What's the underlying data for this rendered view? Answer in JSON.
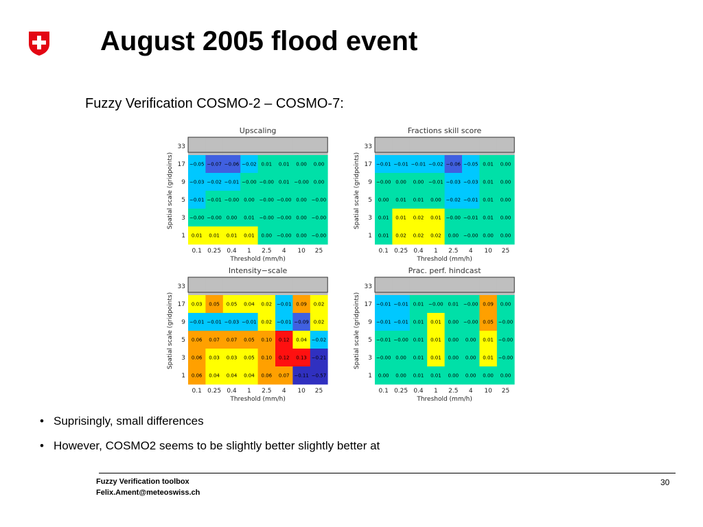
{
  "slide": {
    "title": "August 2005 flood event",
    "subtitle": "Fuzzy Verification COSMO-2 – COSMO-7:",
    "bullets": [
      "Suprisingly, small differences",
      "However, COSMO2 seems to be slightly better slightly better at"
    ],
    "footer_line1": "Fuzzy Verification toolbox",
    "footer_line2": "Felix.Ament@meteoswiss.ch",
    "page_number": "30"
  },
  "colors": {
    "swiss_red": "#E30613",
    "gray_row": "#BFBFBF",
    "cyan": "#00C8FF",
    "blue": "#4060E0",
    "dark_blue": "#3030C0",
    "green": "#00E0A8",
    "yellow": "#FFFF00",
    "orange": "#FFA000",
    "red": "#FF1010"
  },
  "chart_data": [
    {
      "type": "heatmap",
      "title": "Upscaling",
      "xlabel": "Threshold (mm/h)",
      "ylabel": "Spatial scale (gridpoints)",
      "x": [
        "0.1",
        "0.25",
        "0.4",
        "1",
        "2.5",
        "4",
        "10",
        "25"
      ],
      "y": [
        "1",
        "3",
        "5",
        "9",
        "17",
        "33"
      ],
      "values": [
        [
          "0.01",
          "0.01",
          "0.01",
          "0.01",
          "0.00",
          "−0.00",
          "0.00",
          "−0.00"
        ],
        [
          "−0.00",
          "−0.00",
          "0.00",
          "0.01",
          "−0.00",
          "−0.00",
          "0.00",
          "−0.00"
        ],
        [
          "−0.01",
          "−0.01",
          "−0.00",
          "0.00",
          "−0.00",
          "−0.00",
          "0.00",
          "−0.00"
        ],
        [
          "−0.03",
          "−0.02",
          "−0.01",
          "−0.00",
          "−0.00",
          "0.01",
          "−0.00",
          "0.00"
        ],
        [
          "−0.05",
          "−0.07",
          "−0.06",
          "−0.02",
          "0.01",
          "0.01",
          "0.00",
          "0.00"
        ],
        [
          "",
          "",
          "",
          "",
          "",
          "",
          "",
          ""
        ]
      ],
      "colors": [
        [
          "yellow",
          "yellow",
          "yellow",
          "yellow",
          "green",
          "green",
          "green",
          "green"
        ],
        [
          "green",
          "green",
          "green",
          "green",
          "green",
          "green",
          "green",
          "green"
        ],
        [
          "cyan",
          "green",
          "green",
          "green",
          "green",
          "green",
          "green",
          "green"
        ],
        [
          "cyan",
          "cyan",
          "cyan",
          "green",
          "green",
          "green",
          "green",
          "green"
        ],
        [
          "cyan",
          "blue",
          "blue",
          "cyan",
          "green",
          "green",
          "green",
          "green"
        ],
        [
          "gray",
          "gray",
          "gray",
          "gray",
          "gray",
          "gray",
          "gray",
          "gray"
        ]
      ]
    },
    {
      "type": "heatmap",
      "title": "Fractions skill score",
      "xlabel": "Threshold (mm/h)",
      "ylabel": "Spatial scale (gridpoints)",
      "x": [
        "0.1",
        "0.25",
        "0.4",
        "1",
        "2.5",
        "4",
        "10",
        "25"
      ],
      "y": [
        "1",
        "3",
        "5",
        "9",
        "17",
        "33"
      ],
      "values": [
        [
          "0.01",
          "0.02",
          "0.02",
          "0.02",
          "0.00",
          "−0.00",
          "0.00",
          "0.00"
        ],
        [
          "0.01",
          "0.01",
          "0.02",
          "0.01",
          "−0.00",
          "−0.01",
          "0.01",
          "0.00"
        ],
        [
          "0.00",
          "0.01",
          "0.01",
          "0.00",
          "−0.02",
          "−0.01",
          "0.01",
          "0.00"
        ],
        [
          "−0.00",
          "0.00",
          "0.00",
          "−0.01",
          "−0.03",
          "−0.03",
          "0.01",
          "0.00"
        ],
        [
          "−0.01",
          "−0.01",
          "−0.01",
          "−0.02",
          "−0.06",
          "−0.05",
          "0.01",
          "0.00"
        ],
        [
          "",
          "",
          "",
          "",
          "",
          "",
          "",
          ""
        ]
      ],
      "colors": [
        [
          "green",
          "yellow",
          "yellow",
          "yellow",
          "green",
          "green",
          "green",
          "green"
        ],
        [
          "green",
          "yellow",
          "yellow",
          "yellow",
          "green",
          "green",
          "green",
          "green"
        ],
        [
          "green",
          "green",
          "green",
          "green",
          "cyan",
          "cyan",
          "green",
          "green"
        ],
        [
          "green",
          "green",
          "green",
          "green",
          "cyan",
          "cyan",
          "green",
          "green"
        ],
        [
          "cyan",
          "cyan",
          "cyan",
          "cyan",
          "blue",
          "cyan",
          "green",
          "green"
        ],
        [
          "gray",
          "gray",
          "gray",
          "gray",
          "gray",
          "gray",
          "gray",
          "gray"
        ]
      ]
    },
    {
      "type": "heatmap",
      "title": "Intensity−scale",
      "xlabel": "Threshold (mm/h)",
      "ylabel": "Spatial scale (gridpoints)",
      "x": [
        "0.1",
        "0.25",
        "0.4",
        "1",
        "2.5",
        "4",
        "10",
        "25"
      ],
      "y": [
        "1",
        "3",
        "5",
        "9",
        "17",
        "33"
      ],
      "values": [
        [
          "0.06",
          "0.04",
          "0.04",
          "0.04",
          "0.06",
          "0.07",
          "−0.11",
          "−0.57"
        ],
        [
          "0.06",
          "0.03",
          "0.03",
          "0.05",
          "0.10",
          "0.12",
          "0.13",
          "−0.21"
        ],
        [
          "0.06",
          "0.07",
          "0.07",
          "0.05",
          "0.10",
          "0.12",
          "0.04",
          "−0.02"
        ],
        [
          "−0.01",
          "−0.01",
          "−0.03",
          "−0.01",
          "0.02",
          "−0.01",
          "−0.09",
          "0.02"
        ],
        [
          "0.03",
          "0.05",
          "0.05",
          "0.04",
          "0.02",
          "−0.01",
          "0.09",
          "0.02"
        ],
        [
          "",
          "",
          "",
          "",
          "",
          "",
          "",
          ""
        ]
      ],
      "colors": [
        [
          "orange",
          "yellow",
          "yellow",
          "yellow",
          "orange",
          "orange",
          "dark_blue",
          "dark_blue"
        ],
        [
          "orange",
          "yellow",
          "yellow",
          "yellow",
          "orange",
          "red",
          "red",
          "dark_blue"
        ],
        [
          "orange",
          "orange",
          "orange",
          "orange",
          "orange",
          "red",
          "yellow",
          "cyan"
        ],
        [
          "cyan",
          "cyan",
          "cyan",
          "cyan",
          "yellow",
          "cyan",
          "blue",
          "yellow"
        ],
        [
          "yellow",
          "orange",
          "yellow",
          "yellow",
          "yellow",
          "cyan",
          "orange",
          "yellow"
        ],
        [
          "gray",
          "gray",
          "gray",
          "gray",
          "gray",
          "gray",
          "gray",
          "gray"
        ]
      ]
    },
    {
      "type": "heatmap",
      "title": "Prac. perf. hindcast",
      "xlabel": "Threshold (mm/h)",
      "ylabel": "Spatial scale (gridpoints)",
      "x": [
        "0.1",
        "0.25",
        "0.4",
        "1",
        "2.5",
        "4",
        "10",
        "25"
      ],
      "y": [
        "1",
        "3",
        "5",
        "9",
        "17",
        "33"
      ],
      "values": [
        [
          "0.00",
          "0.00",
          "0.01",
          "0.01",
          "0.00",
          "0.00",
          "0.00",
          "0.00"
        ],
        [
          "−0.00",
          "0.00",
          "0.01",
          "0.01",
          "0.00",
          "0.00",
          "0.01",
          "−0.00"
        ],
        [
          "−0.01",
          "−0.00",
          "0.01",
          "0.01",
          "0.00",
          "0.00",
          "0.01",
          "−0.00"
        ],
        [
          "−0.01",
          "−0.01",
          "0.01",
          "0.01",
          "0.00",
          "−0.00",
          "0.05",
          "−0.00"
        ],
        [
          "−0.01",
          "−0.01",
          "0.01",
          "−0.00",
          "0.01",
          "−0.00",
          "0.09",
          "0.00"
        ],
        [
          "",
          "",
          "",
          "",
          "",
          "",
          "",
          ""
        ]
      ],
      "colors": [
        [
          "green",
          "green",
          "green",
          "green",
          "green",
          "green",
          "green",
          "green"
        ],
        [
          "green",
          "green",
          "green",
          "yellow",
          "green",
          "green",
          "yellow",
          "green"
        ],
        [
          "green",
          "green",
          "green",
          "yellow",
          "green",
          "green",
          "yellow",
          "green"
        ],
        [
          "cyan",
          "cyan",
          "green",
          "yellow",
          "green",
          "green",
          "orange",
          "green"
        ],
        [
          "cyan",
          "cyan",
          "green",
          "green",
          "green",
          "green",
          "orange",
          "green"
        ],
        [
          "gray",
          "gray",
          "gray",
          "gray",
          "gray",
          "gray",
          "gray",
          "gray"
        ]
      ]
    }
  ]
}
